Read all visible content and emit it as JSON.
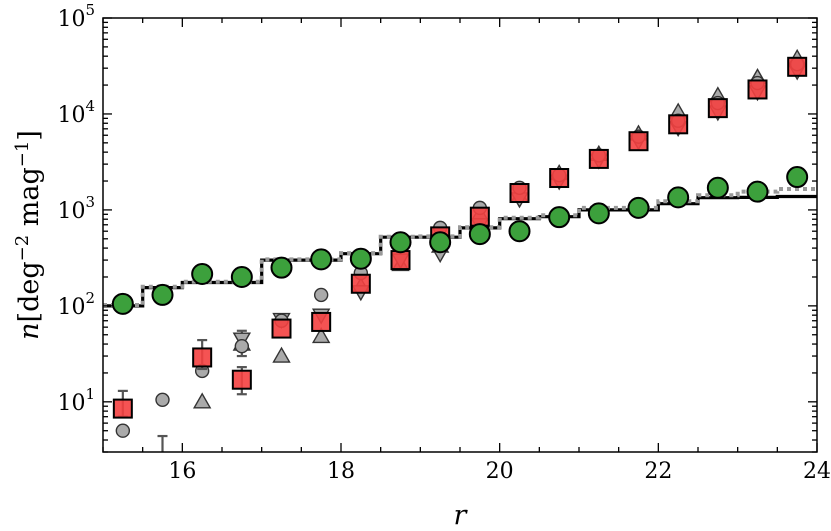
{
  "chart_data": {
    "type": "scatter",
    "xlabel": "r",
    "ylabel": {
      "prefix": "n",
      "text": "[deg",
      "sup1": "−2",
      "middle": " mag",
      "sup2": "−1",
      "suffix": "]"
    },
    "xlim": [
      15,
      24
    ],
    "ylim": [
      3,
      100000
    ],
    "yscale": "log",
    "grid": false,
    "xticks": [
      16,
      18,
      20,
      22,
      24
    ],
    "yticks": [
      {
        "value": 10,
        "base": "10",
        "exp": "1"
      },
      {
        "value": 100,
        "base": "10",
        "exp": "2"
      },
      {
        "value": 1000,
        "base": "10",
        "exp": "3"
      },
      {
        "value": 10000,
        "base": "10",
        "exp": "4"
      },
      {
        "value": 100000,
        "base": "10",
        "exp": "5"
      }
    ],
    "series": [
      {
        "marker": "triangle-up",
        "color": "#aaaaaa",
        "points": [
          [
            16.25,
            10
          ],
          [
            16.75,
            40
          ],
          [
            17.25,
            30
          ],
          [
            17.75,
            48
          ],
          [
            18.25,
            160
          ],
          [
            18.75,
            270
          ],
          [
            19.25,
            420
          ],
          [
            19.75,
            900
          ],
          [
            20.25,
            1400
          ],
          [
            20.75,
            2400
          ],
          [
            21.25,
            3800
          ],
          [
            21.75,
            6200
          ],
          [
            22.25,
            10500
          ],
          [
            22.75,
            15500
          ],
          [
            23.25,
            24000
          ],
          [
            23.75,
            38000
          ]
        ]
      },
      {
        "marker": "triangle-down",
        "color": "#aaaaaa",
        "points": [
          [
            16.75,
            45
          ],
          [
            17.25,
            72
          ],
          [
            17.75,
            80
          ],
          [
            18.25,
            140
          ],
          [
            18.75,
            300
          ],
          [
            19.25,
            350
          ],
          [
            19.75,
            700
          ],
          [
            20.25,
            1300
          ],
          [
            20.75,
            2000
          ],
          [
            21.25,
            3300
          ],
          [
            21.75,
            5200
          ],
          [
            22.25,
            7200
          ],
          [
            22.75,
            10500
          ],
          [
            23.25,
            17000
          ],
          [
            23.75,
            28000
          ]
        ]
      },
      {
        "marker": "circle",
        "color": "#aaaaaa",
        "points": [
          [
            15.25,
            5
          ],
          [
            15.75,
            10.5
          ],
          [
            16.25,
            21
          ],
          [
            16.75,
            38
          ],
          [
            17.25,
            70
          ],
          [
            17.75,
            130
          ],
          [
            18.25,
            220
          ],
          [
            18.75,
            420
          ],
          [
            19.25,
            650
          ],
          [
            19.75,
            1050
          ],
          [
            20.25,
            1700
          ],
          [
            20.75,
            2300
          ],
          [
            21.25,
            3700
          ],
          [
            21.75,
            5800
          ],
          [
            22.25,
            8500
          ],
          [
            22.75,
            13000
          ],
          [
            23.25,
            21000
          ],
          [
            23.75,
            33000
          ]
        ]
      },
      {
        "marker": "square",
        "color": "#f44040",
        "points": [
          [
            15.25,
            8.5
          ],
          [
            16.25,
            29
          ],
          [
            16.75,
            17
          ],
          [
            17.25,
            58
          ],
          [
            17.75,
            68
          ],
          [
            18.25,
            170
          ],
          [
            18.75,
            300
          ],
          [
            19.25,
            530
          ],
          [
            19.75,
            850
          ],
          [
            20.25,
            1500
          ],
          [
            20.75,
            2150
          ],
          [
            21.25,
            3400
          ],
          [
            21.75,
            5200
          ],
          [
            22.25,
            7800
          ],
          [
            22.75,
            11500
          ],
          [
            23.25,
            18000
          ],
          [
            23.75,
            31000
          ]
        ],
        "errorbars": [
          [
            15.25,
            7,
            13
          ],
          [
            16.25,
            22,
            44
          ],
          [
            16.75,
            12,
            23
          ]
        ]
      },
      {
        "marker": "circle",
        "color": "#3ca03c",
        "points": [
          [
            15.25,
            105
          ],
          [
            15.75,
            130
          ],
          [
            16.25,
            215
          ],
          [
            16.75,
            200
          ],
          [
            17.25,
            250
          ],
          [
            17.75,
            305
          ],
          [
            18.25,
            310
          ],
          [
            18.75,
            460
          ],
          [
            19.25,
            460
          ],
          [
            19.75,
            560
          ],
          [
            20.25,
            600
          ],
          [
            20.75,
            840
          ],
          [
            21.25,
            920
          ],
          [
            21.75,
            1050
          ],
          [
            22.25,
            1350
          ],
          [
            22.75,
            1700
          ],
          [
            23.25,
            1550
          ],
          [
            23.75,
            2200
          ]
        ]
      }
    ],
    "errorbar_extra": [
      [
        15.75,
        1,
        4.4
      ],
      [
        16.75,
        30,
        55
      ]
    ],
    "steps": [
      {
        "style": "solid",
        "color": "#000000",
        "bins": [
          [
            15,
            15.5,
            100
          ],
          [
            15.5,
            16,
            155
          ],
          [
            16,
            17,
            175
          ],
          [
            17,
            18,
            300
          ],
          [
            18,
            18.5,
            350
          ],
          [
            18.5,
            19,
            520
          ],
          [
            19,
            19.5,
            520
          ],
          [
            19.5,
            20,
            650
          ],
          [
            20,
            20.5,
            810
          ],
          [
            20.5,
            21,
            850
          ],
          [
            21,
            22,
            1000
          ],
          [
            22,
            22.5,
            1160
          ],
          [
            22.5,
            23,
            1340
          ],
          [
            23,
            23.5,
            1350
          ],
          [
            23.5,
            24,
            1380
          ]
        ]
      },
      {
        "style": "dotted",
        "color": "#999999",
        "bins": [
          [
            15,
            15.5,
            102
          ],
          [
            15.5,
            16,
            158
          ],
          [
            16,
            17,
            178
          ],
          [
            17,
            18,
            305
          ],
          [
            18,
            18.5,
            355
          ],
          [
            18.5,
            19,
            525
          ],
          [
            19,
            19.5,
            530
          ],
          [
            19.5,
            20,
            660
          ],
          [
            20,
            20.5,
            830
          ],
          [
            20.5,
            21,
            880
          ],
          [
            21,
            22,
            1050
          ],
          [
            22,
            22.5,
            1230
          ],
          [
            22.5,
            23,
            1420
          ],
          [
            23,
            23.5,
            1550
          ],
          [
            23.5,
            24,
            1650
          ]
        ]
      }
    ]
  }
}
